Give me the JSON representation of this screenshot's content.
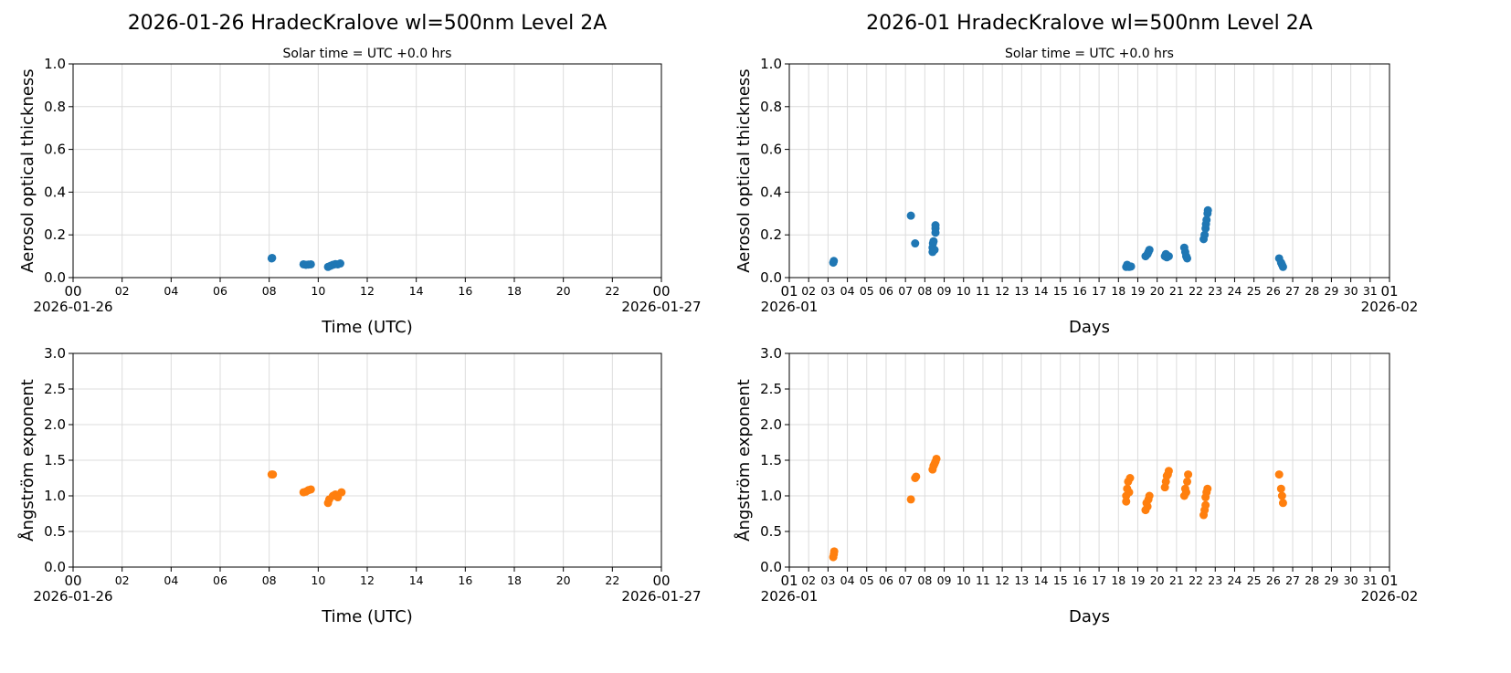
{
  "chart_data": [
    {
      "type": "scatter",
      "title": "2026-01-26  HradecKralove  wl=500nm  Level 2A",
      "subtitle": "Solar time = UTC +0.0 hrs",
      "xlabel": "Time (UTC)",
      "ylabel": "Aerosol optical thickness",
      "xlim": [
        0,
        24
      ],
      "ylim": [
        0,
        1.0
      ],
      "xticks": [
        "00",
        "02",
        "04",
        "06",
        "08",
        "10",
        "12",
        "14",
        "16",
        "18",
        "20",
        "22",
        "00"
      ],
      "xdate_start": "2026-01-26",
      "xdate_end": "2026-01-27",
      "yticks": [
        "0.0",
        "0.2",
        "0.4",
        "0.6",
        "0.8",
        "1.0"
      ],
      "grid": true,
      "color": "#1f77b4",
      "points": [
        [
          8.1,
          0.09
        ],
        [
          8.12,
          0.092
        ],
        [
          9.4,
          0.062
        ],
        [
          9.5,
          0.06
        ],
        [
          9.6,
          0.061
        ],
        [
          9.7,
          0.062
        ],
        [
          10.4,
          0.05
        ],
        [
          10.5,
          0.055
        ],
        [
          10.6,
          0.06
        ],
        [
          10.7,
          0.063
        ],
        [
          10.8,
          0.062
        ],
        [
          10.9,
          0.066
        ]
      ]
    },
    {
      "type": "scatter",
      "title": "2026-01  HradecKralove  wl=500nm  Level 2A",
      "subtitle": "Solar time = UTC +0.0 hrs",
      "xlabel": "Days",
      "ylabel": "Aerosol optical thickness",
      "xlim": [
        1,
        32
      ],
      "ylim": [
        0,
        1.0
      ],
      "xticks": [
        "01",
        "02",
        "03",
        "04",
        "05",
        "06",
        "07",
        "08",
        "09",
        "10",
        "11",
        "12",
        "13",
        "14",
        "15",
        "16",
        "17",
        "18",
        "19",
        "20",
        "21",
        "22",
        "23",
        "24",
        "25",
        "26",
        "27",
        "28",
        "29",
        "30",
        "31",
        "01"
      ],
      "xdate_start": "2026-01",
      "xdate_end": "2026-02",
      "yticks": [
        "0.0",
        "0.2",
        "0.4",
        "0.6",
        "0.8",
        "1.0"
      ],
      "grid": true,
      "color": "#1f77b4",
      "points": [
        [
          3.27,
          0.07
        ],
        [
          3.3,
          0.078
        ],
        [
          7.28,
          0.29
        ],
        [
          7.5,
          0.16
        ],
        [
          8.4,
          0.12
        ],
        [
          8.4,
          0.14
        ],
        [
          8.42,
          0.16
        ],
        [
          8.45,
          0.17
        ],
        [
          8.5,
          0.13
        ],
        [
          8.55,
          0.21
        ],
        [
          8.55,
          0.23
        ],
        [
          8.55,
          0.245
        ],
        [
          18.4,
          0.05
        ],
        [
          18.45,
          0.06
        ],
        [
          18.55,
          0.05
        ],
        [
          18.65,
          0.052
        ],
        [
          19.4,
          0.1
        ],
        [
          19.5,
          0.11
        ],
        [
          19.55,
          0.12
        ],
        [
          19.6,
          0.13
        ],
        [
          20.4,
          0.1
        ],
        [
          20.5,
          0.095
        ],
        [
          20.6,
          0.1
        ],
        [
          20.45,
          0.11
        ],
        [
          21.4,
          0.14
        ],
        [
          21.45,
          0.12
        ],
        [
          21.5,
          0.1
        ],
        [
          21.55,
          0.09
        ],
        [
          22.4,
          0.18
        ],
        [
          22.45,
          0.2
        ],
        [
          22.5,
          0.23
        ],
        [
          22.52,
          0.25
        ],
        [
          22.55,
          0.27
        ],
        [
          22.6,
          0.3
        ],
        [
          22.62,
          0.315
        ],
        [
          26.3,
          0.09
        ],
        [
          26.4,
          0.07
        ],
        [
          26.45,
          0.06
        ],
        [
          26.5,
          0.05
        ]
      ]
    },
    {
      "type": "scatter",
      "xlabel": "Time (UTC)",
      "ylabel": "Ångström exponent",
      "xlim": [
        0,
        24
      ],
      "ylim": [
        0,
        3.0
      ],
      "xticks": [
        "00",
        "02",
        "04",
        "06",
        "08",
        "10",
        "12",
        "14",
        "16",
        "18",
        "20",
        "22",
        "00"
      ],
      "xdate_start": "2026-01-26",
      "xdate_end": "2026-01-27",
      "yticks": [
        "0.0",
        "0.5",
        "1.0",
        "1.5",
        "2.0",
        "2.5",
        "3.0"
      ],
      "grid": true,
      "color": "#ff7f0e",
      "points": [
        [
          8.1,
          1.3
        ],
        [
          8.15,
          1.3
        ],
        [
          9.4,
          1.05
        ],
        [
          9.5,
          1.06
        ],
        [
          9.6,
          1.08
        ],
        [
          9.7,
          1.09
        ],
        [
          10.4,
          0.9
        ],
        [
          10.45,
          0.95
        ],
        [
          10.6,
          1.0
        ],
        [
          10.7,
          1.02
        ],
        [
          10.8,
          0.98
        ],
        [
          10.95,
          1.05
        ]
      ]
    },
    {
      "type": "scatter",
      "xlabel": "Days",
      "ylabel": "Ångström exponent",
      "xlim": [
        1,
        32
      ],
      "ylim": [
        0,
        3.0
      ],
      "xticks": [
        "01",
        "02",
        "03",
        "04",
        "05",
        "06",
        "07",
        "08",
        "09",
        "10",
        "11",
        "12",
        "13",
        "14",
        "15",
        "16",
        "17",
        "18",
        "19",
        "20",
        "21",
        "22",
        "23",
        "24",
        "25",
        "26",
        "27",
        "28",
        "29",
        "30",
        "31",
        "01"
      ],
      "xdate_start": "2026-01",
      "xdate_end": "2026-02",
      "yticks": [
        "0.0",
        "0.5",
        "1.0",
        "1.5",
        "2.0",
        "2.5",
        "3.0"
      ],
      "grid": true,
      "color": "#ff7f0e",
      "points": [
        [
          3.27,
          0.14
        ],
        [
          3.3,
          0.18
        ],
        [
          3.32,
          0.22
        ],
        [
          7.28,
          0.95
        ],
        [
          7.5,
          1.25
        ],
        [
          7.55,
          1.27
        ],
        [
          8.4,
          1.37
        ],
        [
          8.45,
          1.42
        ],
        [
          8.5,
          1.45
        ],
        [
          8.55,
          1.48
        ],
        [
          8.6,
          1.52
        ],
        [
          18.4,
          0.92
        ],
        [
          18.4,
          1.0
        ],
        [
          18.45,
          1.1
        ],
        [
          18.5,
          1.2
        ],
        [
          18.55,
          1.05
        ],
        [
          18.6,
          1.25
        ],
        [
          19.4,
          0.8
        ],
        [
          19.45,
          0.9
        ],
        [
          19.5,
          0.85
        ],
        [
          19.55,
          0.95
        ],
        [
          19.6,
          1.0
        ],
        [
          20.4,
          1.12
        ],
        [
          20.45,
          1.2
        ],
        [
          20.5,
          1.28
        ],
        [
          20.55,
          1.3
        ],
        [
          20.6,
          1.35
        ],
        [
          21.4,
          1.0
        ],
        [
          21.45,
          1.1
        ],
        [
          21.5,
          1.05
        ],
        [
          21.55,
          1.2
        ],
        [
          21.6,
          1.3
        ],
        [
          22.4,
          0.73
        ],
        [
          22.45,
          0.8
        ],
        [
          22.5,
          0.87
        ],
        [
          22.5,
          0.98
        ],
        [
          22.55,
          1.05
        ],
        [
          22.6,
          1.1
        ],
        [
          26.3,
          1.3
        ],
        [
          26.4,
          1.1
        ],
        [
          26.45,
          1.0
        ],
        [
          26.5,
          0.9
        ]
      ]
    }
  ]
}
